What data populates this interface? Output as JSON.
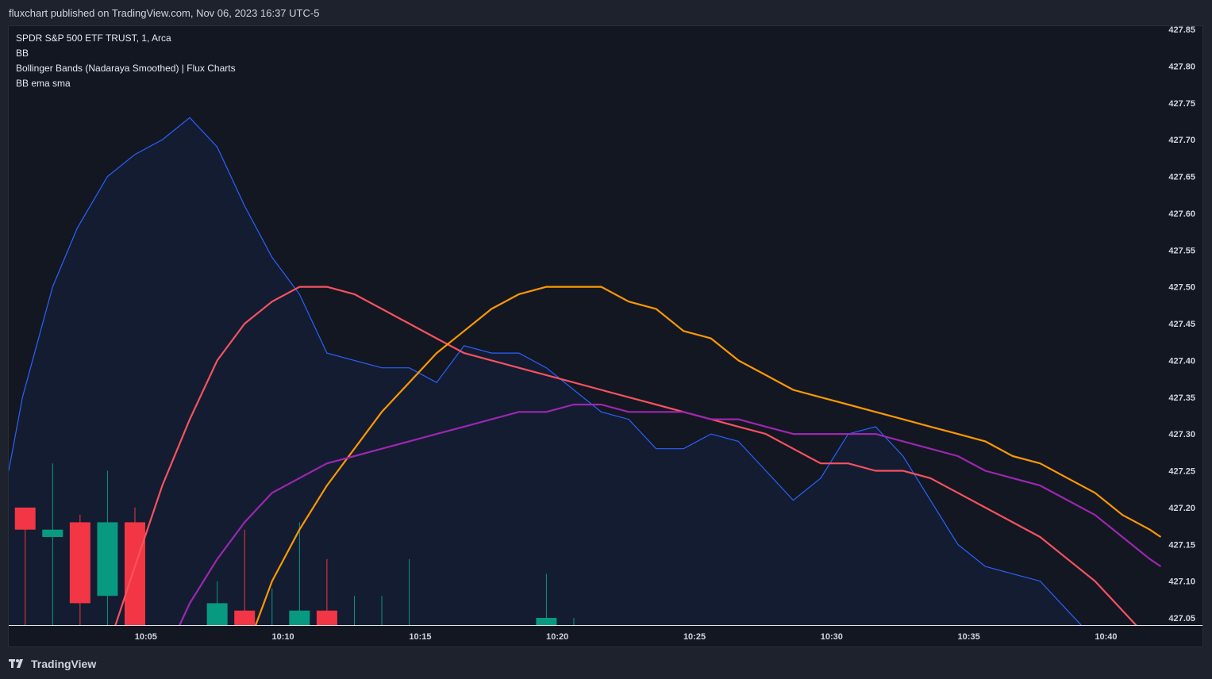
{
  "header": {
    "publisher_line": "fluxchart published on TradingView.com, Nov 06, 2023 16:37 UTC-5"
  },
  "legend": {
    "symbol": "SPDR S&P 500 ETF TRUST, 1, Arca",
    "indicator_1": "BB",
    "indicator_2": "Bollinger Bands (Nadaraya Smoothed) | Flux Charts",
    "indicator_3": "BB ema sma"
  },
  "footer": {
    "brand": "TradingView",
    "logo_icon": "tradingview-logo-icon"
  },
  "colors": {
    "background": "#131722",
    "page": "#1e222d",
    "bull": "#089981",
    "bear": "#f23645",
    "blue_band": "#2962ff",
    "red_line": "#f7525f",
    "orange_line": "#ff9800",
    "purple_line": "#9c27b0"
  },
  "chart_data": {
    "type": "line",
    "symbol": "SPDR S&P 500 ETF TRUST",
    "interval": "1",
    "exchange": "Arca",
    "grid": false,
    "ylim": [
      427.03,
      427.87
    ],
    "y_ticks": [
      "427.85",
      "427.80",
      "427.75",
      "427.70",
      "427.65",
      "427.60",
      "427.55",
      "427.50",
      "427.45",
      "427.40",
      "427.35",
      "427.30",
      "427.25",
      "427.20",
      "427.15",
      "427.10",
      "427.05"
    ],
    "x_ticks": [
      {
        "label": "10:05",
        "minute": 5
      },
      {
        "label": "10:10",
        "minute": 10
      },
      {
        "label": "10:15",
        "minute": 15
      },
      {
        "label": "10:20",
        "minute": 20
      },
      {
        "label": "10:25",
        "minute": 25
      },
      {
        "label": "10:30",
        "minute": 30
      },
      {
        "label": "10:35",
        "minute": 35
      },
      {
        "label": "10:40",
        "minute": 40
      }
    ],
    "xlim": [
      0.0,
      42.1
    ],
    "candles": [
      {
        "t": 0.6,
        "open": 427.2,
        "high": 427.2,
        "low": 427.0,
        "close": 427.17
      },
      {
        "t": 1.6,
        "open": 427.16,
        "high": 427.26,
        "low": 427.0,
        "close": 427.17
      },
      {
        "t": 2.6,
        "open": 427.18,
        "high": 427.19,
        "low": 427.0,
        "close": 427.07
      },
      {
        "t": 3.6,
        "open": 427.08,
        "high": 427.25,
        "low": 427.0,
        "close": 427.18
      },
      {
        "t": 4.6,
        "open": 427.18,
        "high": 427.2,
        "low": 427.0,
        "close": 427.03
      },
      {
        "t": 7.6,
        "open": 427.04,
        "high": 427.1,
        "low": 427.0,
        "close": 427.07
      },
      {
        "t": 8.6,
        "open": 427.06,
        "high": 427.17,
        "low": 427.0,
        "close": 427.04
      },
      {
        "t": 9.6,
        "open": 427.04,
        "high": 427.09,
        "low": 427.0,
        "close": 427.04
      },
      {
        "t": 10.6,
        "open": 427.04,
        "high": 427.18,
        "low": 427.0,
        "close": 427.06
      },
      {
        "t": 11.6,
        "open": 427.06,
        "high": 427.13,
        "low": 427.0,
        "close": 427.04
      },
      {
        "t": 12.6,
        "open": 427.04,
        "high": 427.08,
        "low": 427.0,
        "close": 427.04
      },
      {
        "t": 13.6,
        "open": 427.04,
        "high": 427.08,
        "low": 427.0,
        "close": 427.04
      },
      {
        "t": 14.6,
        "open": 427.04,
        "high": 427.13,
        "low": 427.0,
        "close": 427.04
      },
      {
        "t": 19.6,
        "open": 427.04,
        "high": 427.11,
        "low": 427.0,
        "close": 427.05
      },
      {
        "t": 20.6,
        "open": 427.04,
        "high": 427.05,
        "low": 427.0,
        "close": 427.04
      }
    ],
    "series": [
      {
        "name": "",
        "role": "band (filled)",
        "x": [
          0,
          0.5,
          1.6,
          2.5,
          3.6,
          4.6,
          5.6,
          6.6,
          7.6,
          8.6,
          9.6,
          10.6,
          11.6,
          12.6,
          13.6,
          14.6,
          15.6,
          16.6,
          17.6,
          18.6,
          19.6,
          20.6,
          21.6,
          22.6,
          23.6,
          24.6,
          25.6,
          26.6,
          27.6,
          28.6,
          29.6,
          30.6,
          31.6,
          32.6,
          33.6,
          34.6,
          35.6,
          36.6,
          37.6,
          38.6,
          39.6
        ],
        "values": [
          427.25,
          427.35,
          427.5,
          427.58,
          427.65,
          427.68,
          427.7,
          427.73,
          427.69,
          427.61,
          427.54,
          427.49,
          427.41,
          427.4,
          427.39,
          427.39,
          427.37,
          427.42,
          427.41,
          427.41,
          427.39,
          427.36,
          427.33,
          427.32,
          427.28,
          427.28,
          427.3,
          427.29,
          427.25,
          427.21,
          427.24,
          427.3,
          427.31,
          427.27,
          427.21,
          427.15,
          427.12,
          427.11,
          427.1,
          427.06,
          427.02
        ]
      },
      {
        "name": "",
        "x": [
          3.8,
          4.6,
          5.6,
          6.6,
          7.6,
          8.6,
          9.6,
          10.6,
          11.6,
          12.6,
          13.6,
          14.6,
          15.6,
          16.6,
          17.6,
          18.6,
          19.6,
          20.6,
          21.6,
          22.6,
          23.6,
          24.6,
          25.6,
          26.6,
          27.6,
          28.6,
          29.6,
          30.6,
          31.6,
          32.6,
          33.6,
          34.6,
          35.6,
          36.6,
          37.6,
          38.6,
          39.6,
          40.6,
          41.6
        ],
        "values": [
          427.03,
          427.12,
          427.23,
          427.32,
          427.4,
          427.45,
          427.48,
          427.5,
          427.5,
          427.49,
          427.47,
          427.45,
          427.43,
          427.41,
          427.4,
          427.39,
          427.38,
          427.37,
          427.36,
          427.35,
          427.34,
          427.33,
          427.32,
          427.31,
          427.3,
          427.28,
          427.26,
          427.26,
          427.25,
          427.25,
          427.24,
          427.22,
          427.2,
          427.18,
          427.16,
          427.13,
          427.1,
          427.06,
          427.02
        ]
      },
      {
        "name": "",
        "x": [
          8.9,
          9.6,
          10.6,
          11.6,
          12.6,
          13.6,
          14.6,
          15.6,
          16.6,
          17.6,
          18.6,
          19.6,
          20.6,
          21.6,
          22.6,
          23.6,
          24.6,
          25.6,
          26.6,
          27.6,
          28.6,
          29.6,
          30.6,
          31.6,
          32.6,
          33.6,
          34.6,
          35.6,
          36.6,
          37.6,
          38.6,
          39.6,
          40.6,
          41.6,
          42.0
        ],
        "values": [
          427.03,
          427.1,
          427.17,
          427.23,
          427.28,
          427.33,
          427.37,
          427.41,
          427.44,
          427.47,
          427.49,
          427.5,
          427.5,
          427.5,
          427.48,
          427.47,
          427.44,
          427.43,
          427.4,
          427.38,
          427.36,
          427.35,
          427.34,
          427.33,
          427.32,
          427.31,
          427.3,
          427.29,
          427.27,
          427.26,
          427.24,
          427.22,
          427.19,
          427.17,
          427.16
        ]
      },
      {
        "name": "",
        "x": [
          6.1,
          6.6,
          7.6,
          8.6,
          9.6,
          10.6,
          11.6,
          12.6,
          13.6,
          14.6,
          15.6,
          16.6,
          17.6,
          18.6,
          19.6,
          20.6,
          21.6,
          22.6,
          23.6,
          24.6,
          25.6,
          26.6,
          27.6,
          28.6,
          29.6,
          30.6,
          31.6,
          32.6,
          33.6,
          34.6,
          35.6,
          36.6,
          37.6,
          38.6,
          39.6,
          40.6,
          41.6,
          42.0
        ],
        "values": [
          427.03,
          427.07,
          427.13,
          427.18,
          427.22,
          427.24,
          427.26,
          427.27,
          427.28,
          427.29,
          427.3,
          427.31,
          427.32,
          427.33,
          427.33,
          427.34,
          427.34,
          427.33,
          427.33,
          427.33,
          427.32,
          427.32,
          427.31,
          427.3,
          427.3,
          427.3,
          427.3,
          427.29,
          427.28,
          427.27,
          427.25,
          427.24,
          427.23,
          427.21,
          427.19,
          427.16,
          427.13,
          427.12
        ]
      }
    ]
  }
}
